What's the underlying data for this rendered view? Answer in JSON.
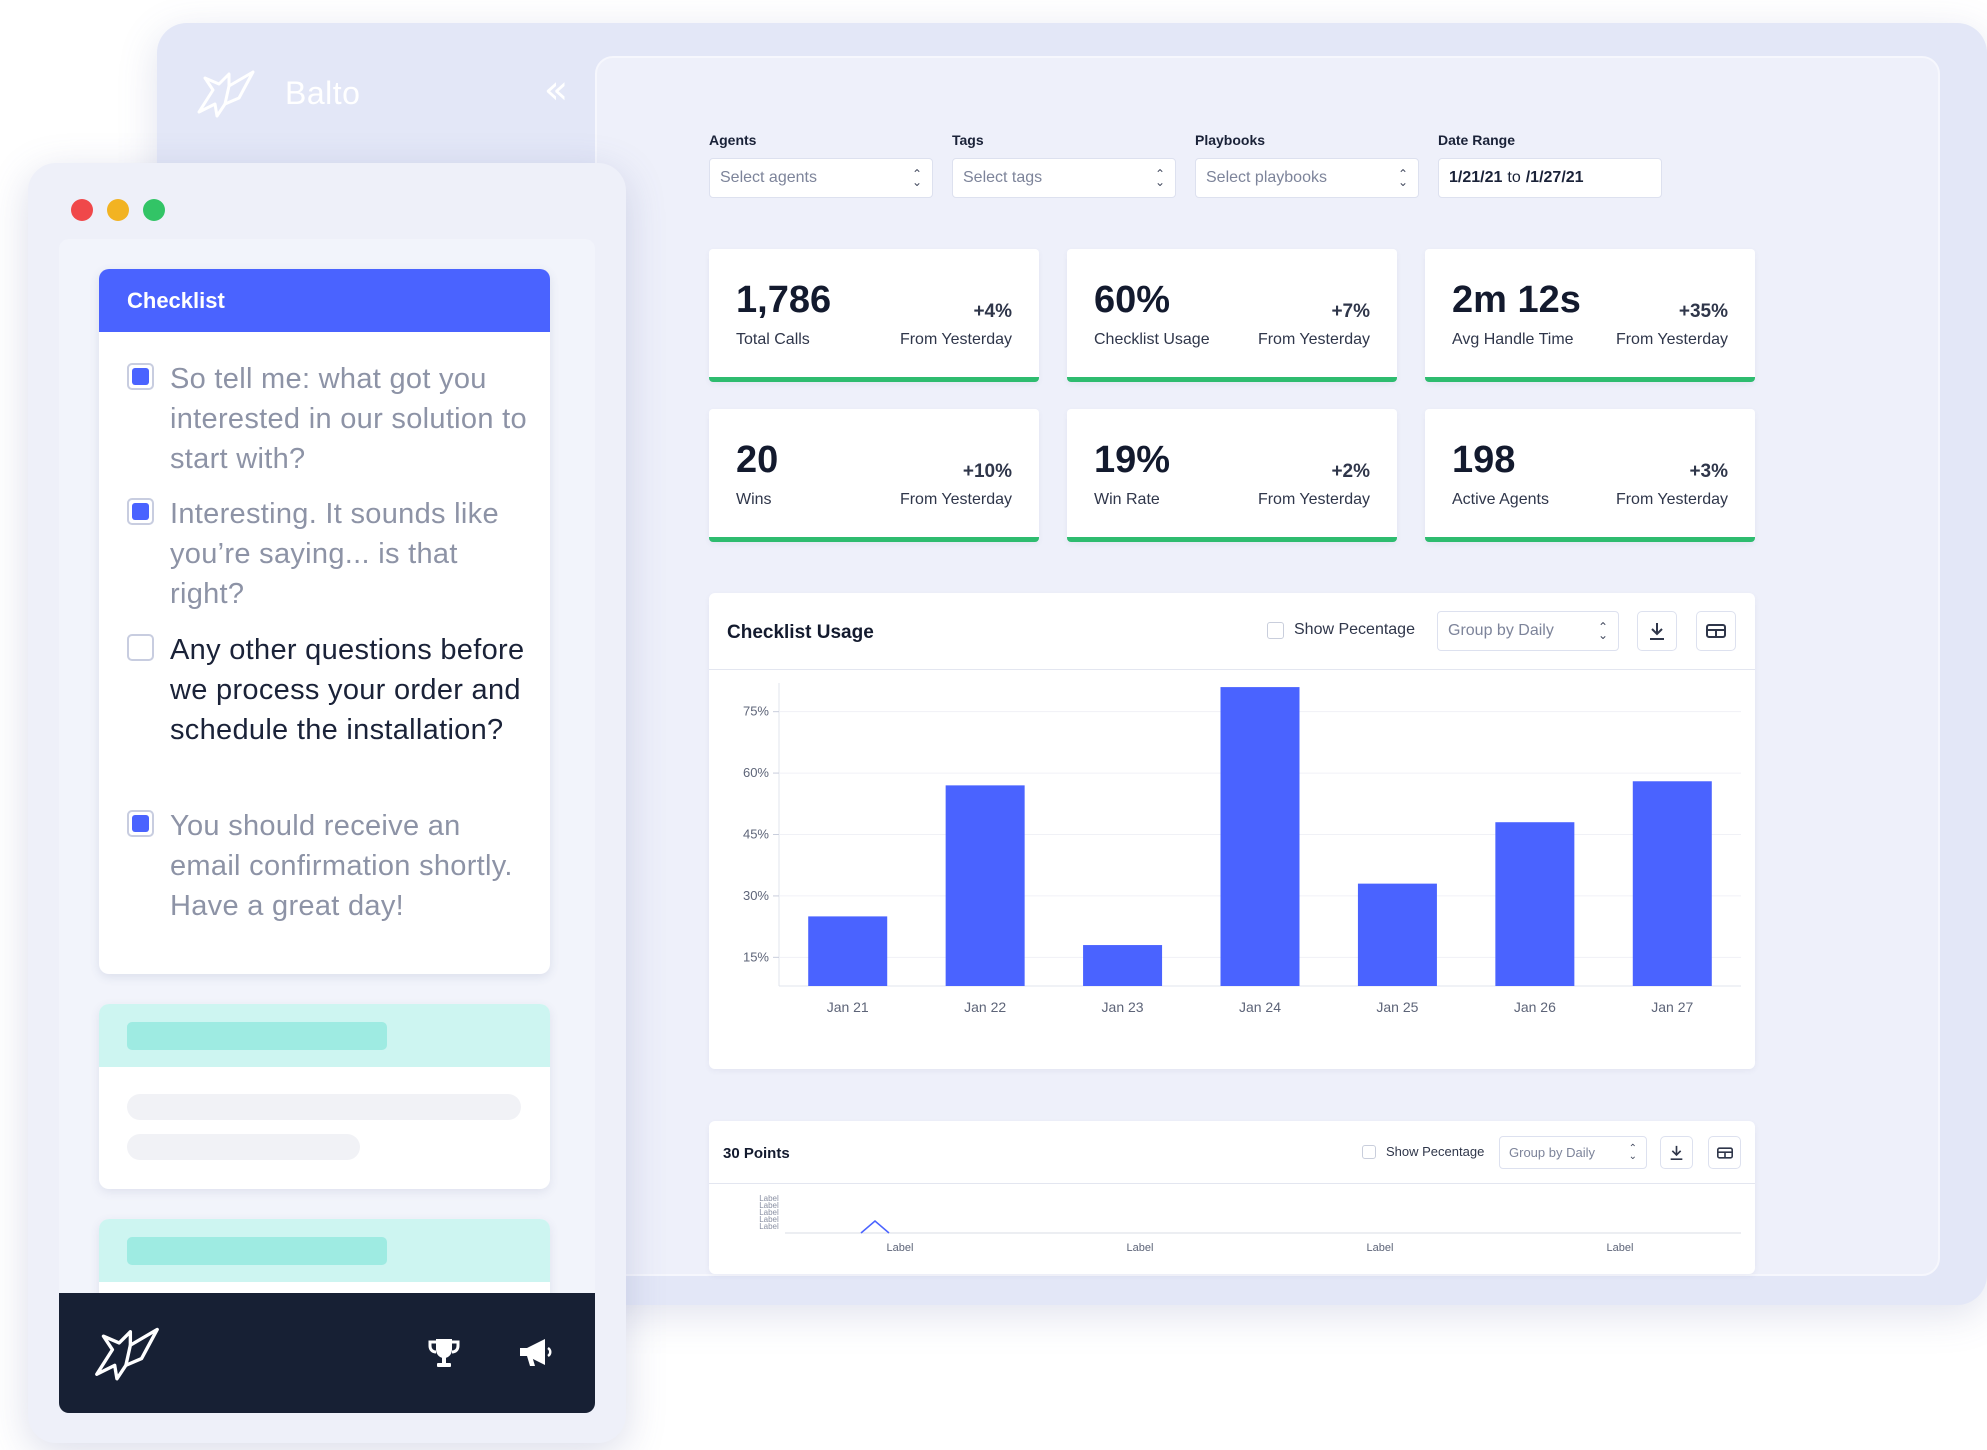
{
  "brand": {
    "name": "Balto"
  },
  "filters": [
    {
      "label": "Agents",
      "placeholder": "Select agents",
      "value": ""
    },
    {
      "label": "Tags",
      "placeholder": "Select tags",
      "value": ""
    },
    {
      "label": "Playbooks",
      "placeholder": "Select playbooks",
      "value": ""
    },
    {
      "label": "Date Range",
      "from": "1/21/21",
      "to_word": "to",
      "to": "/1/27/21"
    }
  ],
  "stats": [
    {
      "value": "1,786",
      "label": "Total Calls",
      "delta": "+4%",
      "sub": "From Yesterday"
    },
    {
      "value": "60%",
      "label": "Checklist Usage",
      "delta": "+7%",
      "sub": "From Yesterday"
    },
    {
      "value": "2m 12s",
      "label": "Avg Handle Time",
      "delta": "+35%",
      "sub": "From Yesterday"
    },
    {
      "value": "20",
      "label": "Wins",
      "delta": "+10%",
      "sub": "From Yesterday"
    },
    {
      "value": "19%",
      "label": "Win Rate",
      "delta": "+2%",
      "sub": "From Yesterday"
    },
    {
      "value": "198",
      "label": "Active Agents",
      "delta": "+3%",
      "sub": "From Yesterday"
    }
  ],
  "main_chart": {
    "title": "Checklist Usage",
    "show_percentage": "Show Pecentage",
    "group_by": "Group by Daily"
  },
  "mini_chart": {
    "title": "30 Points",
    "show_percentage": "Show Pecentage",
    "group_by": "Group by Daily"
  },
  "chart_data": [
    {
      "type": "bar",
      "title": "Checklist Usage",
      "categories": [
        "Jan 21",
        "Jan 22",
        "Jan 23",
        "Jan 24",
        "Jan 25",
        "Jan 26",
        "Jan 27"
      ],
      "values": [
        25,
        57,
        18,
        81,
        33,
        48,
        58
      ],
      "yticks": [
        "15%",
        "30%",
        "45%",
        "60%",
        "75%"
      ],
      "ytick_values": [
        15,
        30,
        45,
        60,
        75
      ],
      "ylim": [
        8,
        82
      ],
      "color": "#4a63ff",
      "grid": true
    },
    {
      "type": "line",
      "title": "30 Points",
      "x_labels": [
        "Label",
        "Label",
        "Label",
        "Label"
      ],
      "y_labels": [
        "Label",
        "Label",
        "Label",
        "Label",
        "Label"
      ],
      "color": "#4a63ff",
      "grid": false
    }
  ],
  "checklist": {
    "title": "Checklist",
    "items": [
      {
        "text": "So tell me: what got you interested in our solution to start with?",
        "checked": true
      },
      {
        "text": "Interesting. It sounds like you’re saying... is that right?",
        "checked": true
      },
      {
        "text": "Any other questions before we process your order and schedule the installation?",
        "checked": false
      },
      {
        "text": "You should receive an email confirmation shortly. Have a great day!",
        "checked": true
      }
    ]
  },
  "colors": {
    "accent": "#4a63ff",
    "success": "#2ebc6f",
    "footer": "#172034",
    "traffic_red": "#f0484a",
    "traffic_yellow": "#f2b322",
    "traffic_green": "#32c466"
  },
  "icons": {
    "collapse": "double-chevron-left-icon",
    "download": "download-icon",
    "table": "table-icon",
    "trophy": "trophy-icon",
    "megaphone": "megaphone-icon"
  }
}
